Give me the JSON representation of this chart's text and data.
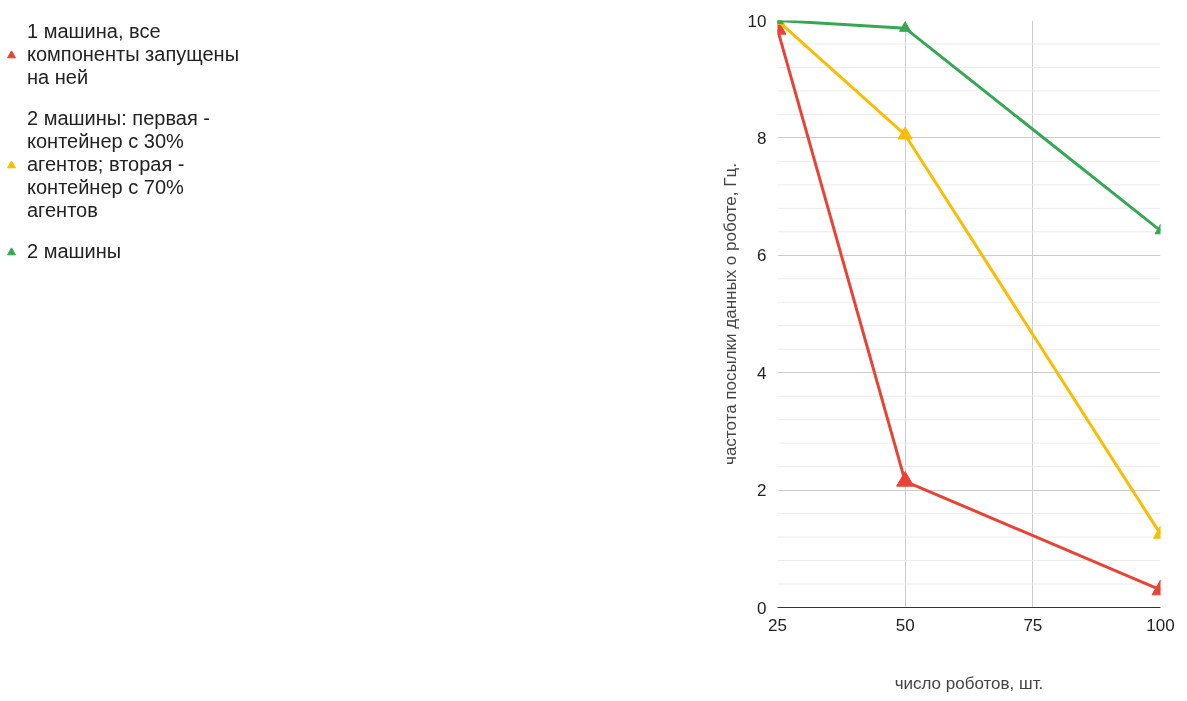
{
  "chart_data": {
    "type": "line",
    "xlabel": "число роботов, шт.",
    "ylabel": "частота посылки данных о роботе, Гц.",
    "x": [
      25,
      50,
      100
    ],
    "xlim": [
      25,
      100
    ],
    "xticks": [
      25,
      50,
      75,
      100
    ],
    "ylim": [
      0,
      10
    ],
    "yticks": [
      0,
      {
        "value": 0.4,
        "label": null
      },
      {
        "value": 0.8,
        "label": null
      },
      {
        "value": 1.2,
        "label": null
      },
      {
        "value": 1.6,
        "label": null
      },
      2,
      {
        "value": 2.4,
        "label": null
      },
      {
        "value": 2.8,
        "label": null
      },
      {
        "value": 3.2,
        "label": null
      },
      {
        "value": 3.6,
        "label": null
      },
      4,
      {
        "value": 4.4,
        "label": null
      },
      {
        "value": 4.8,
        "label": null
      },
      {
        "value": 5.2,
        "label": null
      },
      {
        "value": 5.6,
        "label": null
      },
      6,
      {
        "value": 6.4,
        "label": null
      },
      {
        "value": 6.8,
        "label": null
      },
      {
        "value": 7.2,
        "label": null
      },
      {
        "value": 7.6,
        "label": null
      },
      8,
      {
        "value": 8.4,
        "label": null
      },
      {
        "value": 8.8,
        "label": null
      },
      {
        "value": 9.2,
        "label": null
      },
      {
        "value": 9.6,
        "label": null
      },
      10
    ],
    "grid": true,
    "legend": "left",
    "marker": "triangle",
    "line_style": "solid",
    "series": [
      {
        "name": "1 машина, все компоненты запущены на ней",
        "color": "#ea4335",
        "values": [
          9.85,
          2.15,
          0.3
        ]
      },
      {
        "name": "2 машины: первая - контейнер с 30% агентов; вторая - контейнер с 70% агентов",
        "color": "#fbbc04",
        "values": [
          10,
          8.05,
          1.25
        ]
      },
      {
        "name": "2 машины",
        "color": "#34a853",
        "values": [
          10,
          9.87,
          6.42
        ]
      }
    ]
  }
}
